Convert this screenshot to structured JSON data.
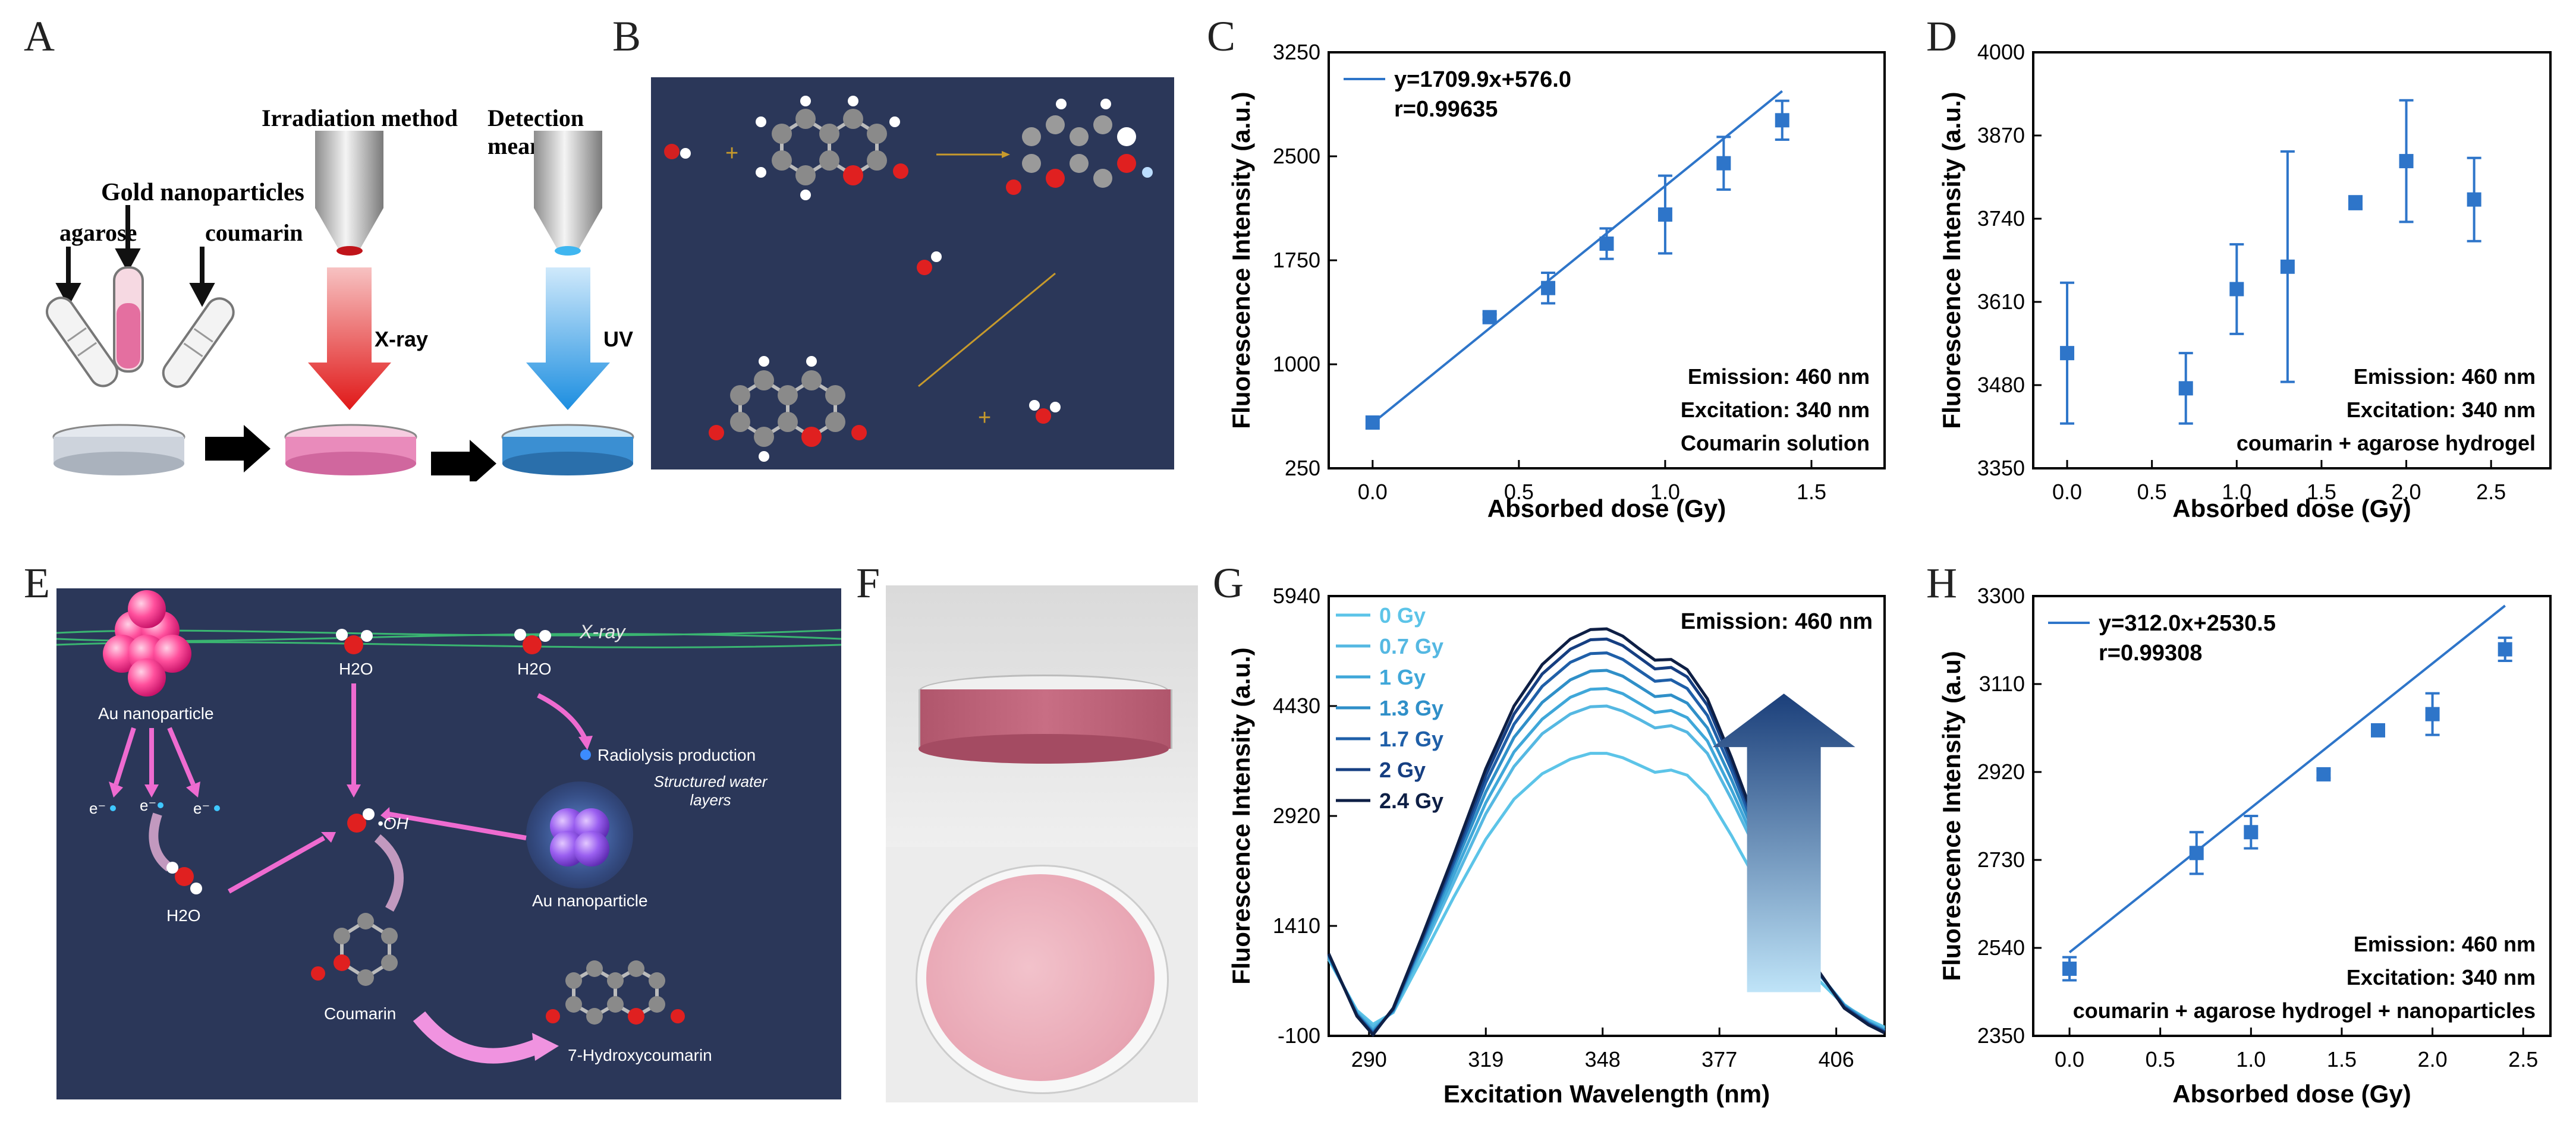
{
  "panels": {
    "A": "A",
    "B": "B",
    "C": "C",
    "D": "D",
    "E": "E",
    "F": "F",
    "G": "G",
    "H": "H"
  },
  "schematic": {
    "gold_label": "Gold nanoparticles",
    "agarose": "agarose",
    "coumarin": "coumarin",
    "irradiation": "Irradiation method",
    "detection": "Detection means",
    "xray": "X-ray",
    "uv": "UV"
  },
  "mechanism": {
    "xray": "X-ray",
    "au_np": "Au nanoparticle",
    "h2o_1": "H2O",
    "h2o_2": "H2O",
    "h2o_3": "H2O",
    "radiolysis": "Radiolysis production",
    "structured": "Structured water layers",
    "oh": "•OH",
    "e1": "e⁻",
    "e2": "e⁻",
    "e3": "e⁻",
    "au_np2": "Au nanoparticle",
    "coumarin": "Coumarin",
    "hydroxy": "7-Hydroxycoumarin"
  },
  "colors": {
    "accent": "#2e75c9",
    "dark_panel": "#2b3759",
    "pink": "#e8a5b3"
  },
  "chart_data": [
    {
      "id": "C",
      "type": "scatter",
      "xlabel": "Absorbed dose (Gy)",
      "ylabel": "Fluorescence Intensity (a.u.)",
      "xlim": [
        -0.15,
        1.75
      ],
      "ylim": [
        250,
        3250
      ],
      "xticks": [
        0,
        0.5,
        1,
        1.5
      ],
      "xtick_labels": [
        "0.0",
        "0.5",
        "1.0",
        "1.5"
      ],
      "yticks": [
        250,
        1000,
        1750,
        2500,
        3250
      ],
      "ytick_labels": [
        "250",
        "1000",
        "1750",
        "2500",
        "3250"
      ],
      "x": [
        0,
        0.4,
        0.6,
        0.8,
        1.0,
        1.2,
        1.4
      ],
      "y": [
        580,
        1340,
        1550,
        1870,
        2080,
        2450,
        2760
      ],
      "err": [
        0,
        20,
        110,
        110,
        280,
        190,
        140
      ],
      "fit": {
        "slope": 1709.9,
        "intercept": 576.0,
        "x0": 0,
        "x1": 1.4
      },
      "legend_eq": "y=1709.9x+576.0",
      "legend_r": "r=0.99635",
      "notes": [
        "Emission: 460 nm",
        "Excitation: 340 nm",
        "Coumarin solution"
      ]
    },
    {
      "id": "D",
      "type": "scatter",
      "xlabel": "Absorbed dose (Gy)",
      "ylabel": "Fluorescence Intensity (a.u.)",
      "xlim": [
        -0.2,
        2.85
      ],
      "ylim": [
        3350,
        4000
      ],
      "xticks": [
        0,
        0.5,
        1,
        1.5,
        2,
        2.5
      ],
      "xtick_labels": [
        "0.0",
        "0.5",
        "1.0",
        "1.5",
        "2.0",
        "2.5"
      ],
      "yticks": [
        3350,
        3480,
        3610,
        3740,
        3870,
        4000
      ],
      "ytick_labels": [
        "3350",
        "3480",
        "3610",
        "3740",
        "3870",
        "4000"
      ],
      "x": [
        0,
        0.7,
        1.0,
        1.3,
        1.7,
        2.0,
        2.4
      ],
      "y": [
        3530,
        3475,
        3630,
        3665,
        3765,
        3830,
        3770
      ],
      "err": [
        110,
        55,
        70,
        180,
        10,
        95,
        65
      ],
      "notes": [
        "Emission: 460 nm",
        "Excitation: 340 nm",
        "coumarin + agarose hydrogel"
      ]
    },
    {
      "id": "G",
      "type": "line",
      "xlabel": "Excitation Wavelength (nm)",
      "ylabel": "Fluorescence Intensity (a.u.)",
      "xlim": [
        280,
        418
      ],
      "ylim": [
        -100,
        5940
      ],
      "xticks": [
        290,
        319,
        348,
        377,
        406
      ],
      "xtick_labels": [
        "290",
        "319",
        "348",
        "377",
        "406"
      ],
      "yticks": [
        -100,
        1410,
        2920,
        4430,
        5940
      ],
      "ytick_labels": [
        "-100",
        "1410",
        "2920",
        "4430",
        "5940"
      ],
      "note": "Emission: 460 nm",
      "x": [
        280,
        287,
        291,
        296,
        303,
        311,
        319,
        326,
        333,
        340,
        345,
        349,
        353,
        357,
        361,
        365,
        369,
        374,
        380,
        387,
        394,
        401,
        408,
        414,
        418
      ],
      "series": [
        {
          "name": "0 Gy",
          "color": "#5cc4e8",
          "values": [
            950,
            250,
            60,
            220,
            950,
            1800,
            2600,
            3150,
            3500,
            3700,
            3780,
            3780,
            3720,
            3620,
            3520,
            3550,
            3480,
            3200,
            2650,
            1950,
            1250,
            700,
            320,
            120,
            20
          ]
        },
        {
          "name": "0.7 Gy",
          "color": "#55b8e2",
          "values": [
            970,
            230,
            20,
            230,
            1050,
            2000,
            2950,
            3600,
            4050,
            4320,
            4420,
            4430,
            4360,
            4250,
            4130,
            4160,
            4070,
            3780,
            3150,
            2350,
            1500,
            800,
            330,
            100,
            0
          ]
        },
        {
          "name": "1 Gy",
          "color": "#3fa7d9",
          "values": [
            990,
            210,
            -20,
            240,
            1100,
            2100,
            3100,
            3800,
            4250,
            4550,
            4660,
            4670,
            4600,
            4470,
            4340,
            4370,
            4270,
            3950,
            3280,
            2420,
            1520,
            800,
            320,
            90,
            -20
          ]
        },
        {
          "name": "1.3 Gy",
          "color": "#2f8fc8",
          "values": [
            1000,
            200,
            -40,
            250,
            1150,
            2200,
            3250,
            4000,
            4480,
            4790,
            4910,
            4920,
            4840,
            4700,
            4560,
            4580,
            4470,
            4130,
            3420,
            2500,
            1550,
            810,
            310,
            80,
            -30
          ]
        },
        {
          "name": "1.7 Gy",
          "color": "#1f5fa8",
          "values": [
            1010,
            190,
            -60,
            260,
            1180,
            2270,
            3380,
            4180,
            4700,
            5030,
            5150,
            5160,
            5070,
            4920,
            4770,
            4790,
            4670,
            4300,
            3550,
            2580,
            1580,
            820,
            300,
            70,
            -40
          ]
        },
        {
          "name": "2 Gy",
          "color": "#163f82",
          "values": [
            1020,
            180,
            -75,
            270,
            1210,
            2330,
            3480,
            4320,
            4870,
            5210,
            5340,
            5350,
            5260,
            5100,
            4940,
            4960,
            4830,
            4440,
            3650,
            2640,
            1610,
            830,
            290,
            60,
            -50
          ]
        },
        {
          "name": "2.4 Gy",
          "color": "#0e1f45",
          "values": [
            1030,
            170,
            -85,
            280,
            1240,
            2380,
            3570,
            4430,
            5000,
            5350,
            5480,
            5490,
            5390,
            5220,
            5060,
            5070,
            4930,
            4530,
            3720,
            2680,
            1630,
            840,
            280,
            50,
            -60
          ]
        }
      ]
    },
    {
      "id": "H",
      "type": "scatter",
      "xlabel": "Absorbed dose (Gy)",
      "ylabel": "Fluorescence Intensity (a.u)",
      "xlim": [
        -0.2,
        2.65
      ],
      "ylim": [
        2350,
        3300
      ],
      "xticks": [
        0,
        0.5,
        1,
        1.5,
        2,
        2.5
      ],
      "xtick_labels": [
        "0.0",
        "0.5",
        "1.0",
        "1.5",
        "2.0",
        "2.5"
      ],
      "yticks": [
        2350,
        2540,
        2730,
        2920,
        3110,
        3300
      ],
      "ytick_labels": [
        "2350",
        "2540",
        "2730",
        "2920",
        "3110",
        "3300"
      ],
      "x": [
        0,
        0.7,
        1.0,
        1.4,
        1.7,
        2.0,
        2.4
      ],
      "y": [
        2495,
        2745,
        2790,
        2915,
        3010,
        3045,
        3185
      ],
      "err": [
        25,
        45,
        35,
        8,
        10,
        45,
        25
      ],
      "fit": {
        "slope": 312.0,
        "intercept": 2530.5,
        "x0": 0,
        "x1": 2.4
      },
      "legend_eq": "y=312.0x+2530.5",
      "legend_r": "r=0.99308",
      "notes": [
        "Emission: 460 nm",
        "Excitation: 340 nm",
        "coumarin + agarose hydrogel + nanoparticles"
      ]
    }
  ]
}
